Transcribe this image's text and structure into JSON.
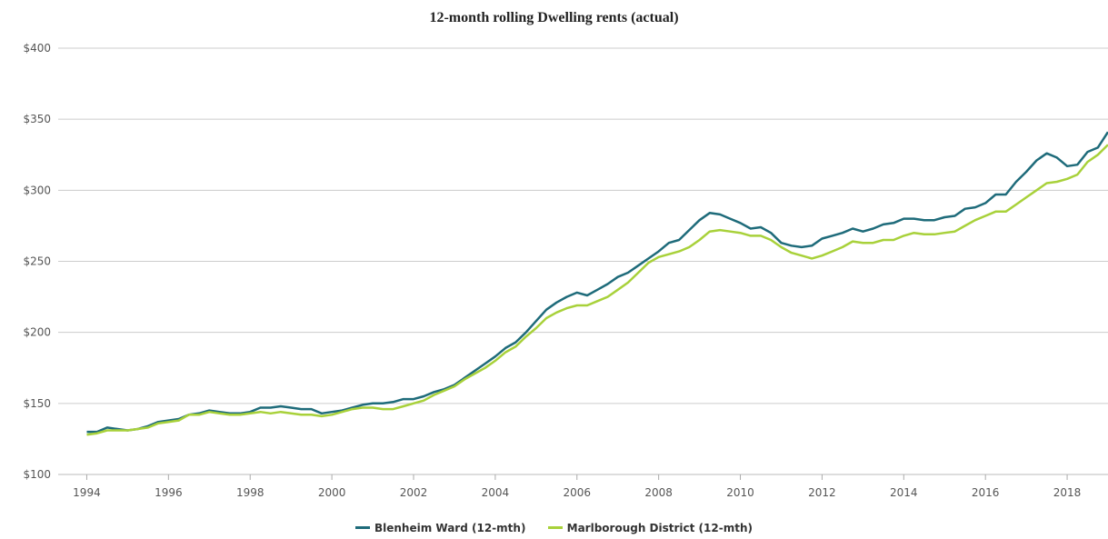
{
  "chart_data": {
    "type": "line",
    "title": "12-month rolling Dwelling rents (actual)",
    "xlabel": "",
    "ylabel": "",
    "xlim": [
      1993.3,
      2019.0
    ],
    "ylim": [
      100,
      400
    ],
    "x_ticks": [
      "1994",
      "1996",
      "1998",
      "2000",
      "2002",
      "2004",
      "2006",
      "2008",
      "2010",
      "2012",
      "2014",
      "2016",
      "2018"
    ],
    "y_ticks": [
      "$100",
      "$150",
      "$200",
      "$250",
      "$300",
      "$350",
      "$400"
    ],
    "grid": true,
    "legend_position": "bottom",
    "series": [
      {
        "name": "Blenheim Ward (12-mth)",
        "color": "#1e6b7a",
        "points": [
          [
            1994.0,
            130
          ],
          [
            1994.25,
            130
          ],
          [
            1994.5,
            133
          ],
          [
            1994.75,
            132
          ],
          [
            1995.0,
            131
          ],
          [
            1995.25,
            132
          ],
          [
            1995.5,
            134
          ],
          [
            1995.75,
            137
          ],
          [
            1996.0,
            138
          ],
          [
            1996.25,
            139
          ],
          [
            1996.5,
            142
          ],
          [
            1996.75,
            143
          ],
          [
            1997.0,
            145
          ],
          [
            1997.25,
            144
          ],
          [
            1997.5,
            143
          ],
          [
            1997.75,
            143
          ],
          [
            1998.0,
            144
          ],
          [
            1998.25,
            147
          ],
          [
            1998.5,
            147
          ],
          [
            1998.75,
            148
          ],
          [
            1999.0,
            147
          ],
          [
            1999.25,
            146
          ],
          [
            1999.5,
            146
          ],
          [
            1999.75,
            143
          ],
          [
            2000.0,
            144
          ],
          [
            2000.25,
            145
          ],
          [
            2000.5,
            147
          ],
          [
            2000.75,
            149
          ],
          [
            2001.0,
            150
          ],
          [
            2001.25,
            150
          ],
          [
            2001.5,
            151
          ],
          [
            2001.75,
            153
          ],
          [
            2002.0,
            153
          ],
          [
            2002.25,
            155
          ],
          [
            2002.5,
            158
          ],
          [
            2002.75,
            160
          ],
          [
            2003.0,
            163
          ],
          [
            2003.25,
            168
          ],
          [
            2003.5,
            173
          ],
          [
            2003.75,
            178
          ],
          [
            2004.0,
            183
          ],
          [
            2004.25,
            189
          ],
          [
            2004.5,
            193
          ],
          [
            2004.75,
            200
          ],
          [
            2005.0,
            208
          ],
          [
            2005.25,
            216
          ],
          [
            2005.5,
            221
          ],
          [
            2005.75,
            225
          ],
          [
            2006.0,
            228
          ],
          [
            2006.25,
            226
          ],
          [
            2006.5,
            230
          ],
          [
            2006.75,
            234
          ],
          [
            2007.0,
            239
          ],
          [
            2007.25,
            242
          ],
          [
            2007.5,
            247
          ],
          [
            2007.75,
            252
          ],
          [
            2008.0,
            257
          ],
          [
            2008.25,
            263
          ],
          [
            2008.5,
            265
          ],
          [
            2008.75,
            272
          ],
          [
            2009.0,
            279
          ],
          [
            2009.25,
            284
          ],
          [
            2009.5,
            283
          ],
          [
            2009.75,
            280
          ],
          [
            2010.0,
            277
          ],
          [
            2010.25,
            273
          ],
          [
            2010.5,
            274
          ],
          [
            2010.75,
            270
          ],
          [
            2011.0,
            263
          ],
          [
            2011.25,
            261
          ],
          [
            2011.5,
            260
          ],
          [
            2011.75,
            261
          ],
          [
            2012.0,
            266
          ],
          [
            2012.25,
            268
          ],
          [
            2012.5,
            270
          ],
          [
            2012.75,
            273
          ],
          [
            2013.0,
            271
          ],
          [
            2013.25,
            273
          ],
          [
            2013.5,
            276
          ],
          [
            2013.75,
            277
          ],
          [
            2014.0,
            280
          ],
          [
            2014.25,
            280
          ],
          [
            2014.5,
            279
          ],
          [
            2014.75,
            279
          ],
          [
            2015.0,
            281
          ],
          [
            2015.25,
            282
          ],
          [
            2015.5,
            287
          ],
          [
            2015.75,
            288
          ],
          [
            2016.0,
            291
          ],
          [
            2016.25,
            297
          ],
          [
            2016.5,
            297
          ],
          [
            2016.75,
            306
          ],
          [
            2017.0,
            313
          ],
          [
            2017.25,
            321
          ],
          [
            2017.5,
            326
          ],
          [
            2017.75,
            323
          ],
          [
            2018.0,
            317
          ],
          [
            2018.25,
            318
          ],
          [
            2018.5,
            327
          ],
          [
            2018.75,
            330
          ],
          [
            2019.0,
            341
          ]
        ]
      },
      {
        "name": "Marlborough District (12-mth)",
        "color": "#a8d13a",
        "points": [
          [
            1994.0,
            128
          ],
          [
            1994.25,
            129
          ],
          [
            1994.5,
            131
          ],
          [
            1994.75,
            131
          ],
          [
            1995.0,
            131
          ],
          [
            1995.25,
            132
          ],
          [
            1995.5,
            133
          ],
          [
            1995.75,
            136
          ],
          [
            1996.0,
            137
          ],
          [
            1996.25,
            138
          ],
          [
            1996.5,
            142
          ],
          [
            1996.75,
            142
          ],
          [
            1997.0,
            144
          ],
          [
            1997.25,
            143
          ],
          [
            1997.5,
            142
          ],
          [
            1997.75,
            142
          ],
          [
            1998.0,
            143
          ],
          [
            1998.25,
            144
          ],
          [
            1998.5,
            143
          ],
          [
            1998.75,
            144
          ],
          [
            1999.0,
            143
          ],
          [
            1999.25,
            142
          ],
          [
            1999.5,
            142
          ],
          [
            1999.75,
            141
          ],
          [
            2000.0,
            142
          ],
          [
            2000.25,
            144
          ],
          [
            2000.5,
            146
          ],
          [
            2000.75,
            147
          ],
          [
            2001.0,
            147
          ],
          [
            2001.25,
            146
          ],
          [
            2001.5,
            146
          ],
          [
            2001.75,
            148
          ],
          [
            2002.0,
            150
          ],
          [
            2002.25,
            152
          ],
          [
            2002.5,
            156
          ],
          [
            2002.75,
            159
          ],
          [
            2003.0,
            162
          ],
          [
            2003.25,
            167
          ],
          [
            2003.5,
            171
          ],
          [
            2003.75,
            175
          ],
          [
            2004.0,
            180
          ],
          [
            2004.25,
            186
          ],
          [
            2004.5,
            190
          ],
          [
            2004.75,
            197
          ],
          [
            2005.0,
            203
          ],
          [
            2005.25,
            210
          ],
          [
            2005.5,
            214
          ],
          [
            2005.75,
            217
          ],
          [
            2006.0,
            219
          ],
          [
            2006.25,
            219
          ],
          [
            2006.5,
            222
          ],
          [
            2006.75,
            225
          ],
          [
            2007.0,
            230
          ],
          [
            2007.25,
            235
          ],
          [
            2007.5,
            242
          ],
          [
            2007.75,
            249
          ],
          [
            2008.0,
            253
          ],
          [
            2008.25,
            255
          ],
          [
            2008.5,
            257
          ],
          [
            2008.75,
            260
          ],
          [
            2009.0,
            265
          ],
          [
            2009.25,
            271
          ],
          [
            2009.5,
            272
          ],
          [
            2009.75,
            271
          ],
          [
            2010.0,
            270
          ],
          [
            2010.25,
            268
          ],
          [
            2010.5,
            268
          ],
          [
            2010.75,
            265
          ],
          [
            2011.0,
            260
          ],
          [
            2011.25,
            256
          ],
          [
            2011.5,
            254
          ],
          [
            2011.75,
            252
          ],
          [
            2012.0,
            254
          ],
          [
            2012.25,
            257
          ],
          [
            2012.5,
            260
          ],
          [
            2012.75,
            264
          ],
          [
            2013.0,
            263
          ],
          [
            2013.25,
            263
          ],
          [
            2013.5,
            265
          ],
          [
            2013.75,
            265
          ],
          [
            2014.0,
            268
          ],
          [
            2014.25,
            270
          ],
          [
            2014.5,
            269
          ],
          [
            2014.75,
            269
          ],
          [
            2015.0,
            270
          ],
          [
            2015.25,
            271
          ],
          [
            2015.5,
            275
          ],
          [
            2015.75,
            279
          ],
          [
            2016.0,
            282
          ],
          [
            2016.25,
            285
          ],
          [
            2016.5,
            285
          ],
          [
            2016.75,
            290
          ],
          [
            2017.0,
            295
          ],
          [
            2017.25,
            300
          ],
          [
            2017.5,
            305
          ],
          [
            2017.75,
            306
          ],
          [
            2018.0,
            308
          ],
          [
            2018.25,
            311
          ],
          [
            2018.5,
            320
          ],
          [
            2018.75,
            325
          ],
          [
            2019.0,
            332
          ]
        ]
      }
    ]
  }
}
